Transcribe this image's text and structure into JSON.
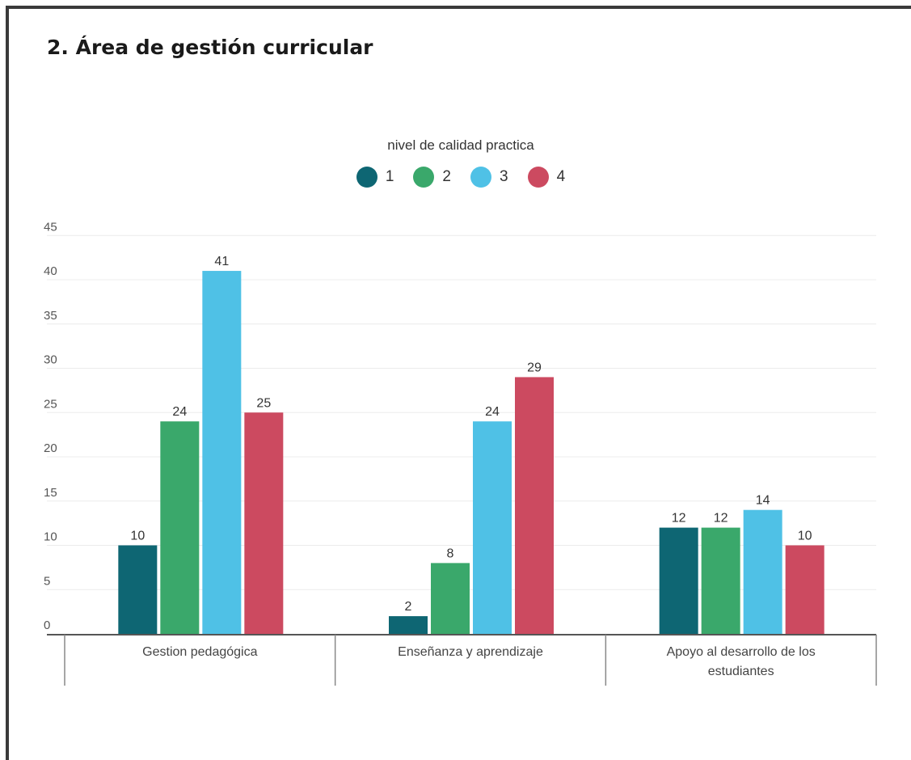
{
  "title": "2. Área de gestión curricular",
  "chart_data": {
    "type": "bar",
    "legend_title": "nivel de calidad practica",
    "legend_position": "top-center",
    "categories": [
      "Gestion pedagógica",
      "Enseñanza y aprendizaje",
      "Apoyo al desarrollo de los estudiantes"
    ],
    "category_lines": [
      [
        "Gestion pedagógica"
      ],
      [
        "Enseñanza y aprendizaje"
      ],
      [
        "Apoyo al desarrollo de los",
        "estudiantes"
      ]
    ],
    "series": [
      {
        "name": "1",
        "color": "#0e6673",
        "values": [
          10,
          2,
          12
        ]
      },
      {
        "name": "2",
        "color": "#3aa86b",
        "values": [
          24,
          8,
          12
        ]
      },
      {
        "name": "3",
        "color": "#4fc1e6",
        "values": [
          41,
          24,
          14
        ]
      },
      {
        "name": "4",
        "color": "#cc4a60",
        "values": [
          25,
          29,
          10
        ]
      }
    ],
    "yticks": [
      0,
      5,
      10,
      15,
      20,
      25,
      30,
      35,
      40,
      45
    ],
    "ylim": [
      0,
      45
    ],
    "grid": true
  }
}
